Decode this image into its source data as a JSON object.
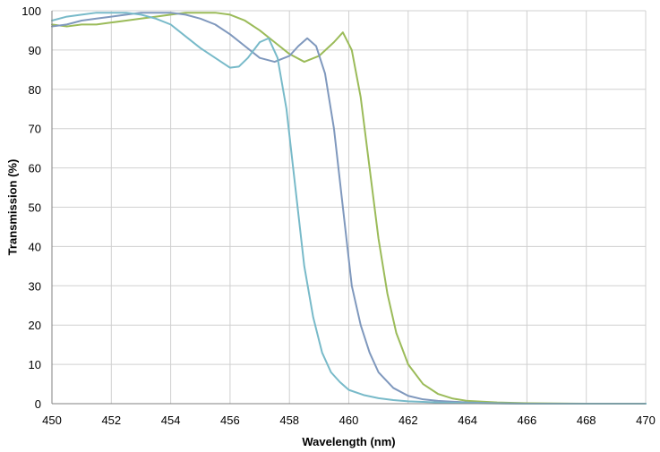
{
  "chart_data": {
    "type": "line",
    "title": "",
    "xlabel": "Wavelength (nm)",
    "ylabel": "Transmission (%)",
    "xlim": [
      450,
      470
    ],
    "ylim": [
      0,
      100
    ],
    "xticks": [
      450,
      452,
      454,
      456,
      458,
      460,
      462,
      464,
      466,
      468,
      470
    ],
    "yticks": [
      0,
      10,
      20,
      30,
      40,
      50,
      60,
      70,
      80,
      90,
      100
    ],
    "grid": true,
    "legend": "none",
    "series": [
      {
        "color": "#9bbb59",
        "points": [
          [
            450,
            96.5
          ],
          [
            450.5,
            96
          ],
          [
            451,
            96.5
          ],
          [
            451.5,
            96.5
          ],
          [
            452,
            97
          ],
          [
            452.5,
            97.5
          ],
          [
            453,
            98
          ],
          [
            453.5,
            98.5
          ],
          [
            454,
            99
          ],
          [
            454.5,
            99.5
          ],
          [
            455,
            99.5
          ],
          [
            455.5,
            99.5
          ],
          [
            456,
            99
          ],
          [
            456.5,
            97.5
          ],
          [
            457,
            95
          ],
          [
            457.5,
            92
          ],
          [
            458,
            89
          ],
          [
            458.5,
            87
          ],
          [
            459,
            88.5
          ],
          [
            459.5,
            92
          ],
          [
            459.8,
            94.5
          ],
          [
            460.1,
            90
          ],
          [
            460.4,
            78
          ],
          [
            460.7,
            60
          ],
          [
            461,
            42
          ],
          [
            461.3,
            28
          ],
          [
            461.6,
            18
          ],
          [
            462,
            10
          ],
          [
            462.5,
            5
          ],
          [
            463,
            2.5
          ],
          [
            463.5,
            1.3
          ],
          [
            464,
            0.7
          ],
          [
            465,
            0.3
          ],
          [
            466,
            0.1
          ],
          [
            468,
            0
          ],
          [
            470,
            0
          ]
        ]
      },
      {
        "color": "#7f98bd",
        "points": [
          [
            450,
            96
          ],
          [
            450.5,
            96.5
          ],
          [
            451,
            97.5
          ],
          [
            451.5,
            98
          ],
          [
            452,
            98.5
          ],
          [
            452.5,
            99
          ],
          [
            453,
            99.5
          ],
          [
            453.5,
            99.5
          ],
          [
            454,
            99.5
          ],
          [
            454.5,
            99
          ],
          [
            455,
            98
          ],
          [
            455.5,
            96.5
          ],
          [
            456,
            94
          ],
          [
            456.5,
            91
          ],
          [
            457,
            88
          ],
          [
            457.5,
            87
          ],
          [
            458,
            88.5
          ],
          [
            458.3,
            91
          ],
          [
            458.6,
            93
          ],
          [
            458.9,
            91
          ],
          [
            459.2,
            84
          ],
          [
            459.5,
            70
          ],
          [
            459.8,
            50
          ],
          [
            460.1,
            30
          ],
          [
            460.4,
            20
          ],
          [
            460.7,
            13
          ],
          [
            461,
            8
          ],
          [
            461.5,
            4
          ],
          [
            462,
            2
          ],
          [
            462.5,
            1.1
          ],
          [
            463,
            0.7
          ],
          [
            464,
            0.3
          ],
          [
            465,
            0.1
          ],
          [
            466,
            0
          ],
          [
            468,
            0
          ],
          [
            470,
            0
          ]
        ]
      },
      {
        "color": "#78bac9",
        "points": [
          [
            450,
            97.5
          ],
          [
            450.5,
            98.5
          ],
          [
            451,
            99
          ],
          [
            451.5,
            99.5
          ],
          [
            452,
            99.5
          ],
          [
            452.5,
            99.5
          ],
          [
            453,
            99
          ],
          [
            453.5,
            98
          ],
          [
            454,
            96.5
          ],
          [
            454.5,
            93.5
          ],
          [
            455,
            90.5
          ],
          [
            455.5,
            88
          ],
          [
            456,
            85.5
          ],
          [
            456.3,
            85.8
          ],
          [
            456.6,
            88
          ],
          [
            457,
            92
          ],
          [
            457.3,
            93
          ],
          [
            457.6,
            88
          ],
          [
            457.9,
            75
          ],
          [
            458.2,
            55
          ],
          [
            458.5,
            35
          ],
          [
            458.8,
            22
          ],
          [
            459.1,
            13
          ],
          [
            459.4,
            8
          ],
          [
            459.7,
            5.5
          ],
          [
            460,
            3.5
          ],
          [
            460.5,
            2.2
          ],
          [
            461,
            1.4
          ],
          [
            461.5,
            0.9
          ],
          [
            462,
            0.6
          ],
          [
            463,
            0.3
          ],
          [
            464,
            0.15
          ],
          [
            465,
            0.05
          ],
          [
            466,
            0
          ],
          [
            468,
            0
          ],
          [
            470,
            0
          ]
        ]
      }
    ]
  }
}
